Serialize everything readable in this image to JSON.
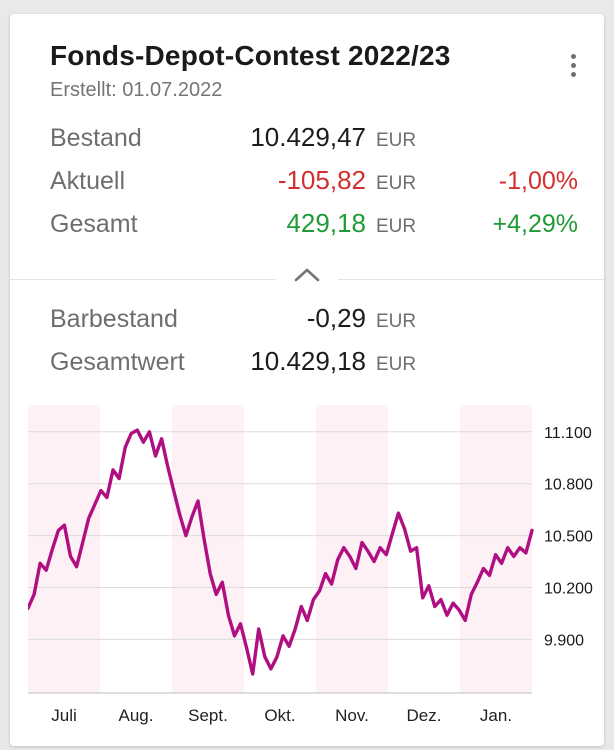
{
  "card": {
    "title": "Fonds-Depot-Contest 2022/23",
    "subtitle": "Erstellt: 01.07.2022",
    "menu_icon": "kebab-menu-icon",
    "collapse_icon": "chevron-up-icon"
  },
  "summary": {
    "rows": [
      {
        "label": "Bestand",
        "value": "10.429,47",
        "currency": "EUR",
        "percent": ""
      },
      {
        "label": "Aktuell",
        "value": "-105,82",
        "currency": "EUR",
        "percent": "-1,00%"
      },
      {
        "label": "Gesamt",
        "value": "429,18",
        "currency": "EUR",
        "percent": "+4,29%"
      }
    ]
  },
  "details": {
    "rows": [
      {
        "label": "Barbestand",
        "value": "-0,29",
        "currency": "EUR"
      },
      {
        "label": "Gesamtwert",
        "value": "10.429,18",
        "currency": "EUR"
      }
    ]
  },
  "colors": {
    "accent_line": "#b00f82",
    "negative": "#d32f2f",
    "positive": "#219a38",
    "band": "#fdf1f6",
    "grid": "#dcdcdc",
    "axis": "#bdbdbd",
    "tick_text": "#1a1a1a"
  },
  "chart_data": {
    "type": "line",
    "title": "",
    "xlabel": "",
    "ylabel": "",
    "unit": "EUR",
    "legend": false,
    "grid": "horizontal",
    "x_months": [
      "Juli",
      "Aug.",
      "Sept.",
      "Okt.",
      "Nov.",
      "Dez.",
      "Jan."
    ],
    "yticks": [
      9900,
      10200,
      10500,
      10800,
      11100
    ],
    "ytick_labels": [
      "9.900",
      "10.200",
      "10.500",
      "10.800",
      "11.100"
    ],
    "ylim": [
      9590,
      11255
    ],
    "values": [
      10080,
      10160,
      10340,
      10300,
      10420,
      10530,
      10560,
      10380,
      10320,
      10460,
      10600,
      10680,
      10760,
      10720,
      10880,
      10830,
      11010,
      11090,
      11110,
      11040,
      11100,
      10960,
      11060,
      10900,
      10760,
      10620,
      10500,
      10610,
      10700,
      10480,
      10280,
      10160,
      10230,
      10040,
      9920,
      9990,
      9850,
      9700,
      9960,
      9800,
      9730,
      9800,
      9920,
      9860,
      9960,
      10090,
      10010,
      10130,
      10180,
      10280,
      10220,
      10360,
      10430,
      10380,
      10310,
      10460,
      10410,
      10350,
      10430,
      10390,
      10510,
      10630,
      10540,
      10410,
      10430,
      10140,
      10210,
      10090,
      10130,
      10040,
      10110,
      10070,
      10010,
      10160,
      10230,
      10310,
      10270,
      10390,
      10340,
      10430,
      10380,
      10430,
      10400,
      10530
    ]
  }
}
